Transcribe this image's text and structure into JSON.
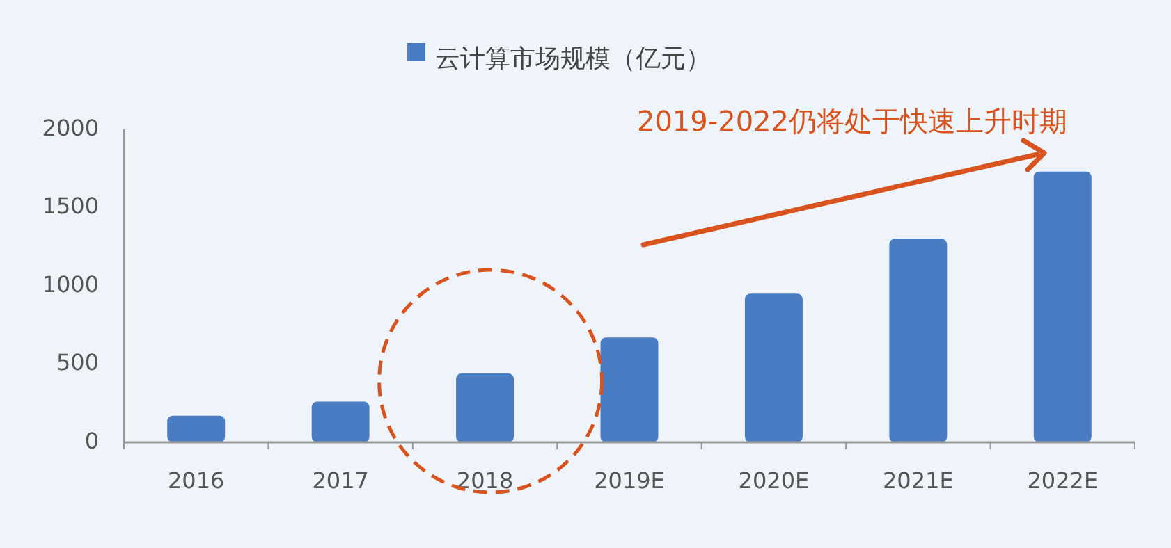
{
  "chart_data": {
    "type": "bar",
    "categories": [
      "2016",
      "2017",
      "2018",
      "2019E",
      "2020E",
      "2021E",
      "2022E"
    ],
    "series": [
      {
        "name": "云计算市场规模（亿元）",
        "color": "#4a7cc4",
        "values": [
          170,
          260,
          440,
          670,
          950,
          1300,
          1730
        ]
      }
    ],
    "ylim": [
      0,
      2000
    ],
    "yticks": [
      0,
      500,
      1000,
      1500,
      2000
    ],
    "grid": false,
    "legend": "top",
    "annotations": [
      "2019-2022仍将处于快速上升时期"
    ]
  }
}
